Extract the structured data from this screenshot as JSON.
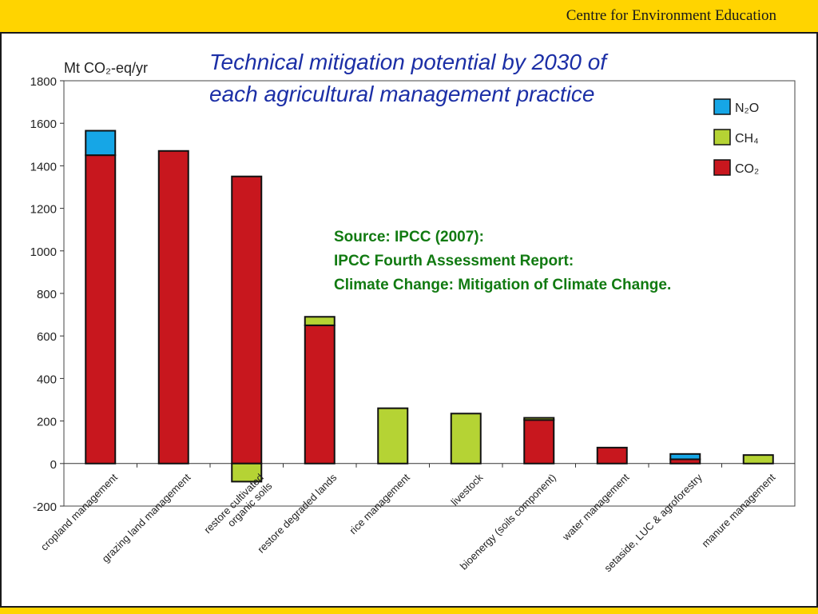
{
  "header": {
    "org": "Centre for Environment Education"
  },
  "slide": {
    "title_line1": "Technical mitigation potential by 2030 of",
    "title_line2": "each agricultural management practice",
    "source_lines": [
      "Source: IPCC (2007):",
      "IPCC Fourth Assessment Report:",
      "Climate Change: Mitigation of Climate Change."
    ]
  },
  "chart_data": {
    "type": "bar",
    "stacked": true,
    "ylabel": "Mt CO₂-eq/yr",
    "ylim": [
      -200,
      1800
    ],
    "yticks": [
      -200,
      0,
      200,
      400,
      600,
      800,
      1000,
      1200,
      1400,
      1600,
      1800
    ],
    "categories": [
      "cropland management",
      "grazing land management",
      "restore cultivated organic soils",
      "restore degraded lands",
      "rice management",
      "livestock",
      "bioenergy (soils component)",
      "water management",
      "setaside, LUC & agroforestry",
      "manure management"
    ],
    "tick_labels": [
      [
        "cropland management"
      ],
      [
        "grazing land management"
      ],
      [
        "restore cultivated",
        "organic soils"
      ],
      [
        "restore degraded lands"
      ],
      [
        "rice management"
      ],
      [
        "livestock"
      ],
      [
        "bioenergy (soils component)"
      ],
      [
        "water management"
      ],
      [
        "setaside, LUC & agroforestry"
      ],
      [
        "manure management"
      ]
    ],
    "series": [
      {
        "name": "CO₂",
        "color": "#c8171e",
        "values": [
          1450,
          1470,
          1350,
          650,
          0,
          0,
          205,
          75,
          20,
          0
        ]
      },
      {
        "name": "CH₄",
        "color": "#b5d334",
        "values": [
          0,
          0,
          -85,
          40,
          260,
          235,
          10,
          0,
          0,
          40
        ]
      },
      {
        "name": "N₂O",
        "color": "#16a6e6",
        "values": [
          115,
          0,
          0,
          0,
          0,
          0,
          0,
          0,
          25,
          0
        ]
      }
    ],
    "legend": {
      "placement": "top-right",
      "items": [
        {
          "label": "N₂O",
          "color": "#16a6e6"
        },
        {
          "label": "CH₄",
          "color": "#b5d334"
        },
        {
          "label": "CO₂",
          "color": "#c8171e"
        }
      ]
    },
    "grid": false
  }
}
